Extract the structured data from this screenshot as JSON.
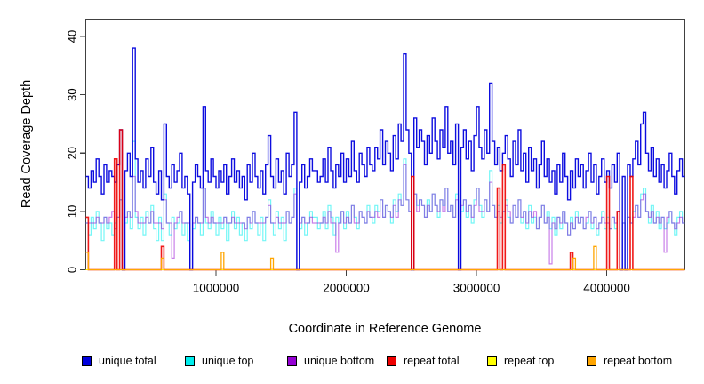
{
  "figure": {
    "background": "#ffffff"
  },
  "chart_data": {
    "type": "line",
    "step": true,
    "title": "",
    "xlabel": "Coordinate in Reference Genome",
    "ylabel": "Read Coverage Depth",
    "xlim": [
      0,
      4600000
    ],
    "ylim": [
      0,
      40
    ],
    "grid": false,
    "legend_position": "bottom",
    "bin_size": 20000,
    "n_bins": 230,
    "x_ticks": [
      {
        "value": 1000000,
        "label": "1000000"
      },
      {
        "value": 2000000,
        "label": "2000000"
      },
      {
        "value": 3000000,
        "label": "3000000"
      },
      {
        "value": 4000000,
        "label": "4000000"
      }
    ],
    "y_ticks": [
      {
        "value": 0,
        "label": "0"
      },
      {
        "value": 10,
        "label": "10"
      },
      {
        "value": 20,
        "label": "20"
      },
      {
        "value": 30,
        "label": "30"
      },
      {
        "value": 40,
        "label": "40"
      }
    ],
    "axis_color": "#404040",
    "series": [
      {
        "name": "unique total",
        "color": "#0000DD",
        "values": [
          16,
          14,
          17,
          15,
          19,
          16,
          13,
          18,
          15,
          17,
          16,
          15,
          18,
          24,
          0,
          17,
          20,
          16,
          38,
          19,
          15,
          17,
          14,
          19,
          16,
          21,
          15,
          13,
          17,
          12,
          25,
          16,
          14,
          18,
          15,
          17,
          20,
          14,
          16,
          13,
          0,
          15,
          18,
          16,
          14,
          28,
          17,
          15,
          19,
          16,
          14,
          17,
          15,
          18,
          13,
          16,
          19,
          15,
          17,
          14,
          16,
          12,
          18,
          15,
          20,
          16,
          14,
          17,
          13,
          18,
          23,
          16,
          14,
          19,
          15,
          17,
          13,
          20,
          16,
          18,
          27,
          0,
          15,
          18,
          14,
          16,
          19,
          17,
          17,
          15,
          16,
          19,
          15,
          21,
          17,
          14,
          18,
          16,
          20,
          15,
          19,
          16,
          22,
          17,
          15,
          20,
          18,
          16,
          21,
          18,
          17,
          21,
          19,
          24,
          18,
          22,
          20,
          17,
          23,
          19,
          25,
          22,
          37,
          24,
          20,
          0,
          26,
          21,
          24,
          22,
          18,
          23,
          20,
          26,
          22,
          19,
          24,
          21,
          28,
          20,
          22,
          18,
          25,
          0,
          21,
          24,
          19,
          22,
          17,
          23,
          28,
          21,
          19,
          24,
          20,
          32,
          22,
          18,
          21,
          17,
          20,
          23,
          19,
          16,
          22,
          18,
          24,
          17,
          20,
          15,
          21,
          17,
          19,
          14,
          18,
          22,
          16,
          19,
          15,
          17,
          13,
          18,
          15,
          20,
          16,
          12,
          17,
          14,
          19,
          16,
          18,
          14,
          17,
          20,
          15,
          18,
          13,
          16,
          19,
          15,
          17,
          14,
          18,
          15,
          20,
          0,
          16,
          0,
          18,
          16,
          19,
          22,
          18,
          25,
          27,
          20,
          17,
          21,
          16,
          19,
          15,
          18,
          14,
          17,
          20,
          16,
          13,
          17,
          19,
          16
        ]
      },
      {
        "name": "unique top",
        "color": "#00EEEE",
        "values": [
          8,
          6,
          9,
          7,
          10,
          8,
          5,
          9,
          7,
          8,
          6,
          8,
          9,
          12,
          0,
          8,
          10,
          7,
          22,
          9,
          7,
          9,
          6,
          10,
          8,
          11,
          7,
          5,
          9,
          5,
          13,
          8,
          6,
          9,
          7,
          8,
          10,
          6,
          8,
          5,
          0,
          7,
          9,
          8,
          6,
          14,
          8,
          7,
          10,
          8,
          6,
          9,
          7,
          9,
          5,
          8,
          10,
          7,
          9,
          6,
          8,
          5,
          9,
          7,
          10,
          8,
          6,
          9,
          5,
          9,
          12,
          8,
          6,
          10,
          7,
          9,
          5,
          10,
          8,
          9,
          14,
          0,
          7,
          9,
          6,
          8,
          10,
          9,
          9,
          7,
          8,
          10,
          7,
          11,
          9,
          6,
          9,
          8,
          10,
          7,
          10,
          8,
          11,
          9,
          7,
          10,
          9,
          8,
          11,
          9,
          8,
          11,
          10,
          12,
          9,
          11,
          10,
          8,
          12,
          10,
          13,
          11,
          19,
          12,
          10,
          0,
          13,
          11,
          12,
          11,
          9,
          12,
          10,
          13,
          11,
          9,
          12,
          11,
          14,
          10,
          11,
          9,
          13,
          0,
          10,
          12,
          9,
          11,
          8,
          12,
          14,
          11,
          9,
          12,
          10,
          17,
          11,
          9,
          11,
          8,
          10,
          12,
          9,
          8,
          11,
          9,
          12,
          8,
          10,
          7,
          11,
          8,
          9,
          7,
          9,
          11,
          8,
          10,
          7,
          9,
          6,
          9,
          7,
          10,
          8,
          6,
          9,
          7,
          10,
          8,
          9,
          7,
          8,
          10,
          7,
          9,
          6,
          8,
          10,
          7,
          9,
          7,
          9,
          7,
          10,
          0,
          8,
          0,
          9,
          8,
          10,
          11,
          9,
          13,
          14,
          10,
          8,
          11,
          8,
          10,
          7,
          9,
          7,
          8,
          10,
          8,
          6,
          9,
          10,
          8
        ]
      },
      {
        "name": "unique bottom",
        "color": "#9400D3",
        "values": [
          8,
          8,
          8,
          8,
          9,
          8,
          8,
          9,
          8,
          9,
          10,
          7,
          9,
          12,
          0,
          9,
          10,
          9,
          16,
          10,
          8,
          8,
          8,
          9,
          8,
          10,
          8,
          8,
          8,
          7,
          12,
          8,
          8,
          2,
          8,
          9,
          10,
          8,
          8,
          8,
          0,
          8,
          9,
          8,
          8,
          14,
          9,
          8,
          9,
          8,
          8,
          8,
          8,
          9,
          8,
          8,
          9,
          8,
          8,
          8,
          8,
          7,
          9,
          8,
          10,
          8,
          8,
          8,
          8,
          9,
          11,
          8,
          8,
          9,
          8,
          8,
          8,
          10,
          8,
          9,
          13,
          0,
          8,
          9,
          8,
          8,
          9,
          8,
          8,
          8,
          8,
          9,
          8,
          10,
          8,
          8,
          3,
          8,
          10,
          8,
          9,
          8,
          11,
          8,
          8,
          10,
          9,
          8,
          10,
          9,
          9,
          10,
          9,
          12,
          9,
          11,
          10,
          9,
          11,
          9,
          12,
          11,
          18,
          12,
          10,
          0,
          13,
          10,
          12,
          11,
          9,
          11,
          10,
          13,
          11,
          10,
          12,
          10,
          14,
          10,
          11,
          9,
          12,
          0,
          11,
          12,
          10,
          11,
          9,
          11,
          14,
          10,
          10,
          12,
          10,
          15,
          11,
          9,
          10,
          9,
          10,
          11,
          10,
          8,
          11,
          9,
          12,
          9,
          10,
          8,
          10,
          9,
          10,
          7,
          9,
          11,
          8,
          9,
          1,
          8,
          7,
          9,
          8,
          10,
          8,
          6,
          8,
          7,
          9,
          8,
          9,
          7,
          9,
          10,
          8,
          9,
          7,
          8,
          9,
          8,
          8,
          7,
          9,
          8,
          10,
          0,
          8,
          0,
          9,
          8,
          9,
          11,
          9,
          12,
          13,
          10,
          9,
          10,
          8,
          9,
          8,
          9,
          3,
          9,
          10,
          8,
          7,
          8,
          9,
          8
        ]
      },
      {
        "name": "repeat total",
        "color": "#EE0000",
        "base": 0,
        "spikes": {
          "0": 9,
          "11": 19,
          "13": 24,
          "29": 4,
          "125": 16,
          "158": 14,
          "160": 18,
          "186": 3,
          "200": 16,
          "204": 10,
          "209": 16
        }
      },
      {
        "name": "repeat top",
        "color": "#FFFF00",
        "base": 0,
        "spikes": {}
      },
      {
        "name": "repeat bottom",
        "color": "#FFA500",
        "base": 0,
        "spikes": {
          "0": 3,
          "29": 2,
          "52": 3,
          "71": 2,
          "187": 2,
          "195": 4
        }
      }
    ]
  }
}
